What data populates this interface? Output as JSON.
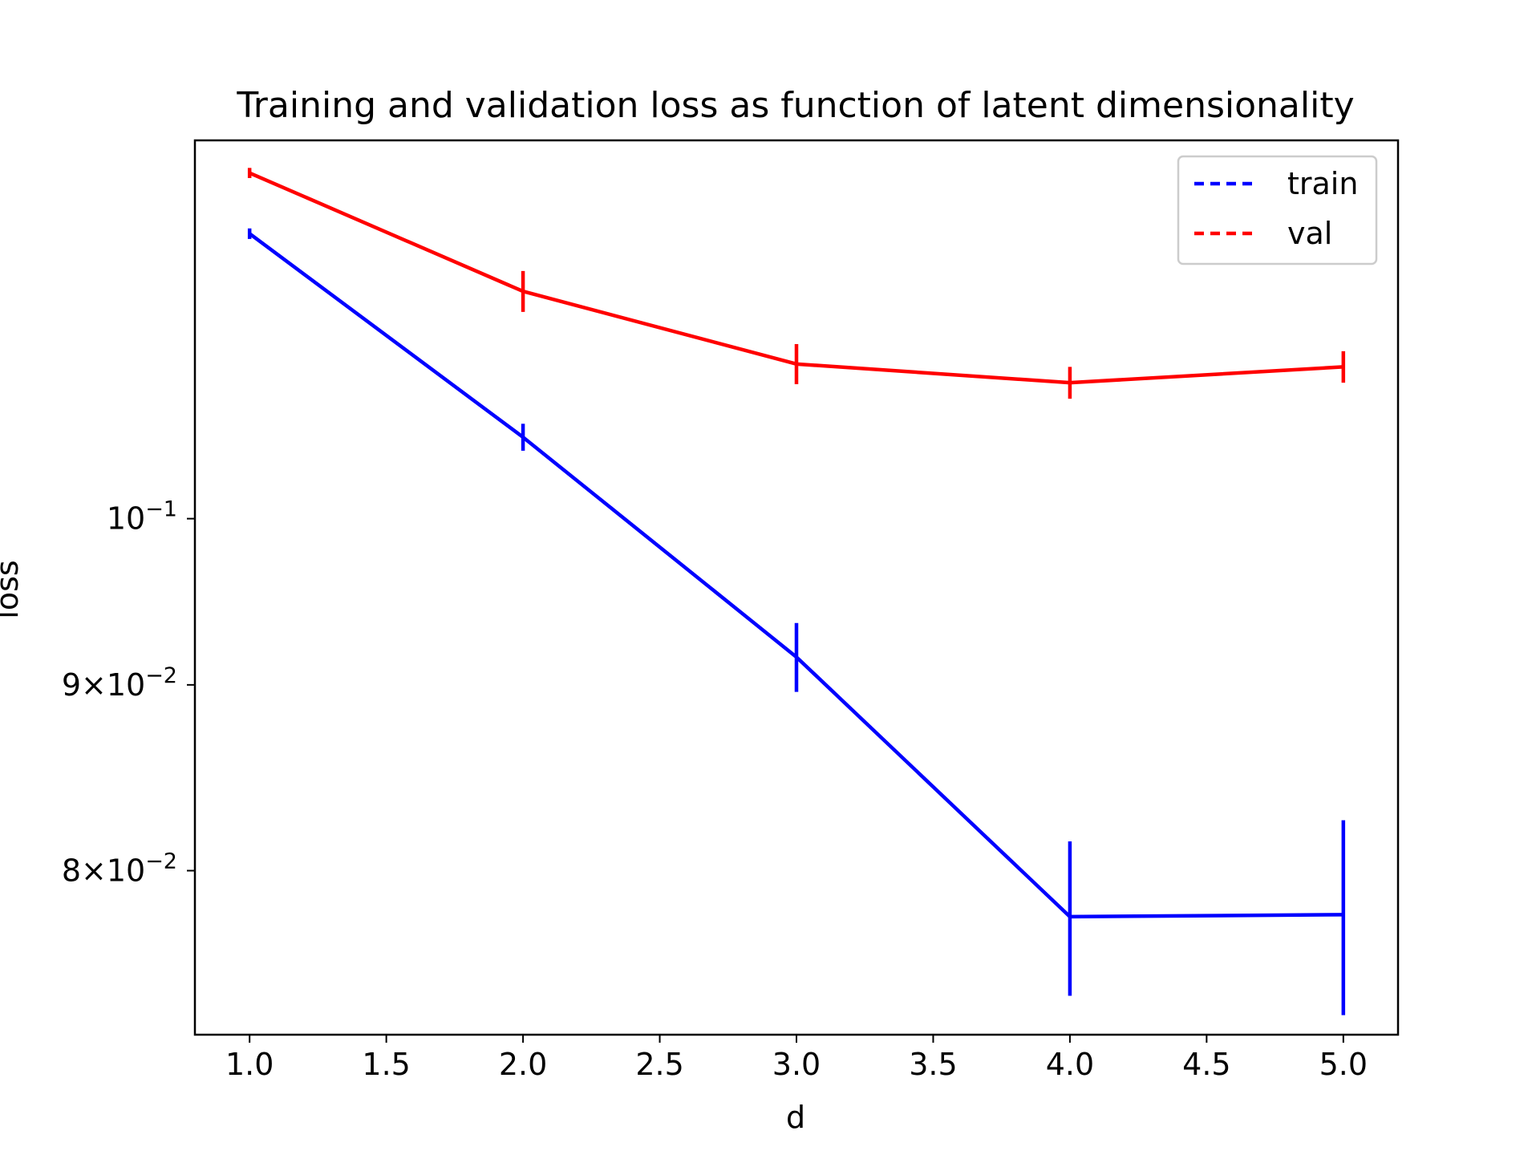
{
  "chart_data": {
    "type": "line",
    "title": "Training and validation loss as function of latent dimensionality",
    "xlabel": "d",
    "ylabel": "loss",
    "xlim": [
      0.8,
      5.2
    ],
    "ylim": [
      0.0721,
      0.1271
    ],
    "yscale": "log",
    "x_ticks": [
      1.0,
      1.5,
      2.0,
      2.5,
      3.0,
      3.5,
      4.0,
      4.5,
      5.0
    ],
    "x_tick_labels": [
      "1.0",
      "1.5",
      "2.0",
      "2.5",
      "3.0",
      "3.5",
      "4.0",
      "4.5",
      "5.0"
    ],
    "y_ticks": [
      {
        "value": 0.1,
        "mantissa": "",
        "exponent": "−1"
      },
      {
        "value": 0.09,
        "mantissa": "9",
        "exponent": "−2"
      },
      {
        "value": 0.08,
        "mantissa": "8",
        "exponent": "−2"
      }
    ],
    "x": [
      1,
      2,
      3,
      4,
      5
    ],
    "series": [
      {
        "name": "train",
        "color": "#0000ff",
        "values": [
          0.1198,
          0.1053,
          0.0916,
          0.0777,
          0.0778
        ],
        "error": [
          0.0004,
          0.0009,
          0.002,
          0.0038,
          0.0048
        ]
      },
      {
        "name": "val",
        "color": "#ff0000",
        "values": [
          0.1245,
          0.1155,
          0.1103,
          0.109,
          0.1101
        ],
        "error": [
          0.0004,
          0.0015,
          0.0014,
          0.0011,
          0.0011
        ]
      }
    ],
    "legend": "top-right",
    "grid": false
  }
}
